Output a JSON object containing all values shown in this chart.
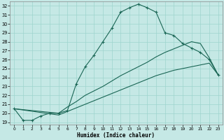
{
  "xlabel": "Humidex (Indice chaleur)",
  "bg_color": "#c5e8e5",
  "line_color": "#1a6655",
  "grid_color": "#9dd4ce",
  "xlim": [
    -0.5,
    23.5
  ],
  "ylim": [
    18.7,
    32.5
  ],
  "xticks": [
    0,
    1,
    2,
    3,
    4,
    5,
    6,
    7,
    8,
    9,
    10,
    11,
    12,
    13,
    14,
    15,
    16,
    17,
    18,
    19,
    20,
    21,
    22,
    23
  ],
  "yticks": [
    19,
    20,
    21,
    22,
    23,
    24,
    25,
    26,
    27,
    28,
    29,
    30,
    31,
    32
  ],
  "curve1_x": [
    0,
    1,
    2,
    3,
    4,
    5,
    6,
    7,
    8,
    9,
    10,
    11,
    12,
    13,
    14,
    15,
    16,
    17,
    18,
    19,
    20,
    21,
    22,
    23
  ],
  "curve1_y": [
    20.5,
    19.2,
    19.2,
    19.7,
    20.0,
    20.0,
    20.3,
    23.3,
    25.2,
    26.5,
    28.0,
    29.5,
    31.3,
    31.8,
    32.2,
    31.8,
    31.3,
    29.0,
    28.7,
    27.8,
    27.3,
    26.8,
    26.0,
    24.3
  ],
  "curve2_x": [
    0,
    5,
    6,
    7,
    8,
    9,
    10,
    11,
    12,
    13,
    14,
    15,
    16,
    17,
    18,
    19,
    20,
    21,
    22,
    23
  ],
  "curve2_y": [
    20.5,
    20.0,
    20.7,
    21.3,
    22.0,
    22.5,
    23.0,
    23.6,
    24.2,
    24.7,
    25.2,
    25.7,
    26.3,
    26.8,
    27.2,
    27.6,
    28.0,
    27.8,
    26.2,
    24.3
  ],
  "curve3_x": [
    0,
    5,
    6,
    7,
    8,
    9,
    10,
    11,
    12,
    13,
    14,
    15,
    16,
    17,
    18,
    19,
    20,
    21,
    22,
    23
  ],
  "curve3_y": [
    20.5,
    19.8,
    20.2,
    20.6,
    21.0,
    21.4,
    21.8,
    22.2,
    22.6,
    23.0,
    23.4,
    23.8,
    24.2,
    24.5,
    24.8,
    25.0,
    25.2,
    25.4,
    25.6,
    24.3
  ]
}
